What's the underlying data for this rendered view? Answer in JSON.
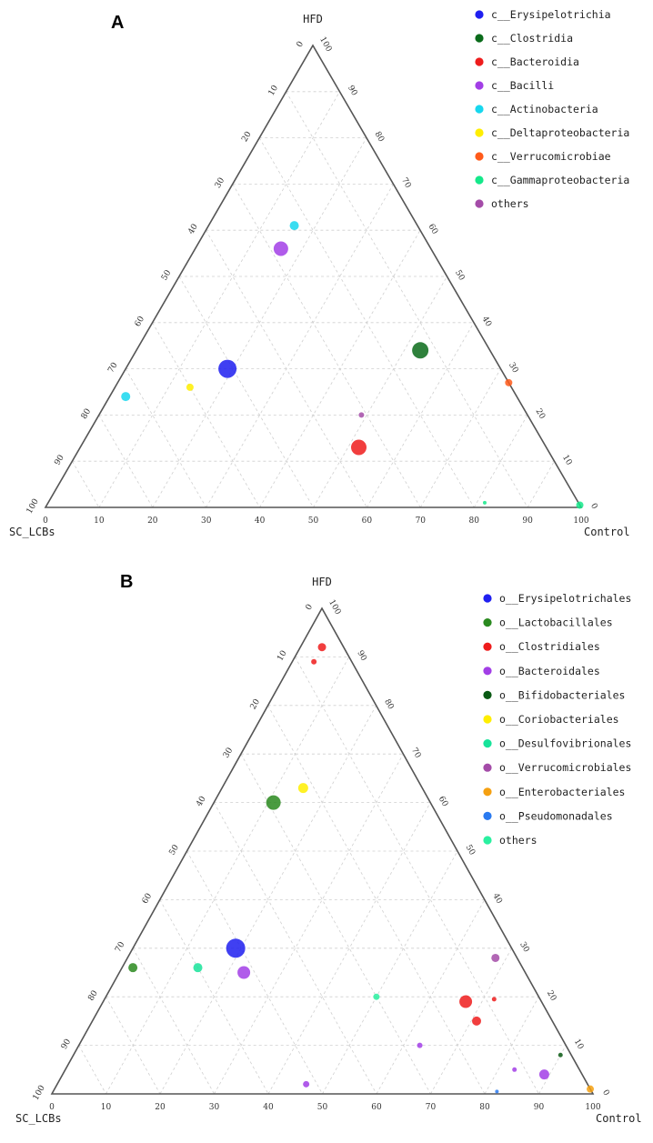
{
  "chart_data": [
    {
      "panel": "A",
      "type": "scatter",
      "ticks": [
        "0",
        "10",
        "20",
        "30",
        "40",
        "50",
        "60",
        "70",
        "80",
        "90",
        "100"
      ],
      "corners": {
        "top": "HFD",
        "left": "SC_LCBs",
        "right": "Control"
      },
      "legend": [
        {
          "label": "c__Erysipelotrichia",
          "color": "#1f1ff0"
        },
        {
          "label": "c__Clostridia",
          "color": "#0a6b1a"
        },
        {
          "label": "c__Bacteroidia",
          "color": "#ee1c1c"
        },
        {
          "label": "c__Bacilli",
          "color": "#a23ee6"
        },
        {
          "label": "c__Actinobacteria",
          "color": "#17d7ee"
        },
        {
          "label": "c__Deltaproteobacteria",
          "color": "#ffee00"
        },
        {
          "label": "c__Verrucomicrobiae",
          "color": "#ff5a1a"
        },
        {
          "label": "c__Gammaproteobacteria",
          "color": "#14e88a"
        },
        {
          "label": "others",
          "color": "#a44ca8"
        }
      ],
      "points": [
        {
          "name": "c__Erysipelotrichia",
          "hfd": 30,
          "control": 19,
          "size": 10,
          "color": "#1f1ff0"
        },
        {
          "name": "c__Clostridia",
          "hfd": 34,
          "control": 53,
          "size": 9,
          "color": "#0a6b1a"
        },
        {
          "name": "c__Bacteroidia",
          "hfd": 13,
          "control": 52,
          "size": 8.5,
          "color": "#ee1c1c"
        },
        {
          "name": "c__Bacilli",
          "hfd": 56,
          "control": 16,
          "size": 8,
          "color": "#a23ee6"
        },
        {
          "name": "c__Actinobacteria",
          "hfd": 61,
          "control": 16,
          "size": 5,
          "color": "#17d7ee"
        },
        {
          "name": "c__Actinobacteria",
          "hfd": 24,
          "control": 3,
          "size": 5,
          "color": "#17d7ee"
        },
        {
          "name": "c__Deltaproteobacteria",
          "hfd": 26,
          "control": 14,
          "size": 4,
          "color": "#ffee00"
        },
        {
          "name": "c__Verrucomicrobiae",
          "hfd": 27,
          "control": 73,
          "size": 4,
          "color": "#ff5a1a"
        },
        {
          "name": "others",
          "hfd": 20,
          "control": 49,
          "size": 3,
          "color": "#a44ca8"
        },
        {
          "name": "c__Gammaproteobacteria",
          "hfd": 0.5,
          "control": 99.5,
          "size": 4,
          "color": "#14e88a"
        },
        {
          "name": "c__Gammaproteobacteria",
          "hfd": 1,
          "control": 81.5,
          "size": 2,
          "color": "#14e88a"
        }
      ]
    },
    {
      "panel": "B",
      "type": "scatter",
      "ticks": [
        "0",
        "10",
        "20",
        "30",
        "40",
        "50",
        "60",
        "70",
        "80",
        "90",
        "100"
      ],
      "corners": {
        "top": "HFD",
        "left": "SC_LCBs",
        "right": "Control"
      },
      "legend": [
        {
          "label": "o__Erysipelotrichales",
          "color": "#1f1ff0"
        },
        {
          "label": "o__Lactobacillales",
          "color": "#2a8a1f"
        },
        {
          "label": "o__Clostridiales",
          "color": "#ee1c1c"
        },
        {
          "label": "o__Bacteroidales",
          "color": "#a23ee6"
        },
        {
          "label": "o__Bifidobacteriales",
          "color": "#0a5a14"
        },
        {
          "label": "o__Coriobacteriales",
          "color": "#ffee00"
        },
        {
          "label": "o__Desulfovibrionales",
          "color": "#17e39a"
        },
        {
          "label": "o__Verrucomicrobiales",
          "color": "#a44ca8"
        },
        {
          "label": "o__Enterobacteriales",
          "color": "#f5a011"
        },
        {
          "label": "o__Pseudomonadales",
          "color": "#2a7af0"
        },
        {
          "label": "others",
          "color": "#2af0a0"
        }
      ],
      "points": [
        {
          "name": "o__Erysipelotrichales",
          "hfd": 30,
          "control": 19,
          "size": 10.5,
          "color": "#1f1ff0"
        },
        {
          "name": "o__Lactobacillales",
          "hfd": 60,
          "control": 11,
          "size": 8,
          "color": "#2a8a1f"
        },
        {
          "name": "o__Lactobacillales",
          "hfd": 26,
          "control": 2,
          "size": 5,
          "color": "#2a8a1f"
        },
        {
          "name": "o__Clostridiales",
          "hfd": 92,
          "control": 4,
          "size": 4.5,
          "color": "#ee1c1c"
        },
        {
          "name": "o__Clostridiales",
          "hfd": 89,
          "control": 4,
          "size": 3,
          "color": "#ee1c1c"
        },
        {
          "name": "o__Clostridiales",
          "hfd": 19,
          "control": 67,
          "size": 7,
          "color": "#ee1c1c"
        },
        {
          "name": "o__Clostridiales",
          "hfd": 15,
          "control": 71,
          "size": 5,
          "color": "#ee1c1c"
        },
        {
          "name": "o__Clostridiales",
          "hfd": 19.5,
          "control": 72,
          "size": 2.5,
          "color": "#ee1c1c"
        },
        {
          "name": "o__Bacteroidales",
          "hfd": 25,
          "control": 23,
          "size": 7,
          "color": "#a23ee6"
        },
        {
          "name": "o__Bacteroidales",
          "hfd": 4,
          "control": 89,
          "size": 5.5,
          "color": "#a23ee6"
        },
        {
          "name": "o__Bacteroidales",
          "hfd": 2,
          "control": 46,
          "size": 3.5,
          "color": "#a23ee6"
        },
        {
          "name": "o__Bacteroidales",
          "hfd": 10,
          "control": 63,
          "size": 3,
          "color": "#a23ee6"
        },
        {
          "name": "o__Bacteroidales",
          "hfd": 5,
          "control": 83,
          "size": 2.5,
          "color": "#a23ee6"
        },
        {
          "name": "o__Bifidobacteriales",
          "hfd": 8,
          "control": 90,
          "size": 2.5,
          "color": "#0a5a14"
        },
        {
          "name": "o__Coriobacteriales",
          "hfd": 63,
          "control": 15,
          "size": 5.5,
          "color": "#ffee00"
        },
        {
          "name": "o__Desulfovibrionales",
          "hfd": 26,
          "control": 14,
          "size": 5,
          "color": "#17e39a"
        },
        {
          "name": "o__Verrucomicrobiales",
          "hfd": 28,
          "control": 68,
          "size": 4.5,
          "color": "#a44ca8"
        },
        {
          "name": "o__Enterobacteriales",
          "hfd": 1,
          "control": 99,
          "size": 4,
          "color": "#f5a011"
        },
        {
          "name": "o__Pseudomonadales",
          "hfd": 0.5,
          "control": 82,
          "size": 2,
          "color": "#2a7af0"
        },
        {
          "name": "others",
          "hfd": 20,
          "control": 50,
          "size": 3.5,
          "color": "#2af0a0"
        }
      ]
    }
  ]
}
